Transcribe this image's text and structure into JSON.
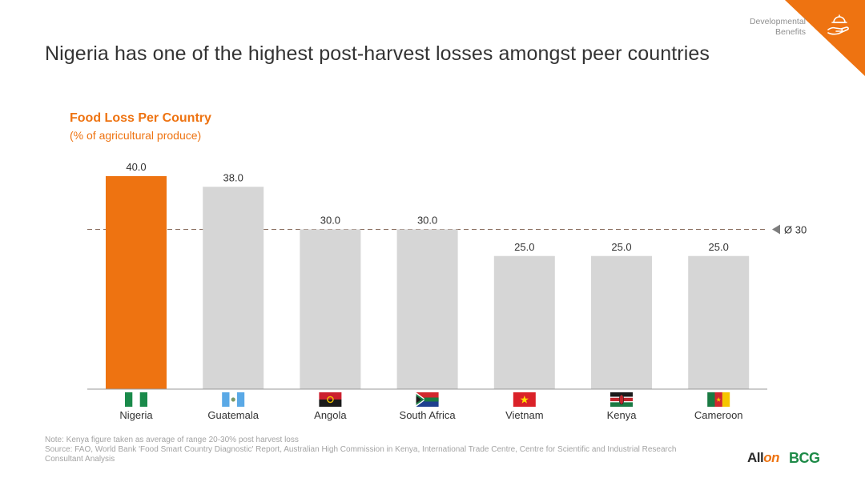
{
  "header": {
    "section_label_line1": "Developmental",
    "section_label_line2": "Benefits",
    "icon": "hand-with-bell-icon",
    "title": "Nigeria has one of the highest post-harvest losses amongst peer countries"
  },
  "colors": {
    "accent": "#ee7311",
    "bar_default": "#d6d6d6",
    "text": "#333333",
    "muted": "#a3a3a3"
  },
  "chart_data": {
    "type": "bar",
    "title": "Food Loss Per Country",
    "subtitle": "(% of agricultural produce)",
    "categories": [
      "Nigeria",
      "Guatemala",
      "Angola",
      "South Africa",
      "Vietnam",
      "Kenya",
      "Cameroon"
    ],
    "values": [
      40.0,
      38.0,
      30.0,
      30.0,
      25.0,
      25.0,
      25.0
    ],
    "value_labels": [
      "40.0",
      "38.0",
      "30.0",
      "30.0",
      "25.0",
      "25.0",
      "25.0"
    ],
    "highlight_index": 0,
    "average": {
      "value": 30,
      "label": "Ø 30"
    },
    "ylim": [
      0,
      40
    ],
    "xlabel": "",
    "ylabel": "",
    "grid": false,
    "legend": "none",
    "flag_icons": [
      "nigeria-flag-icon",
      "guatemala-flag-icon",
      "angola-flag-icon",
      "south-africa-flag-icon",
      "vietnam-flag-icon",
      "kenya-flag-icon",
      "cameroon-flag-icon"
    ]
  },
  "footnotes": {
    "note": "Note: Kenya figure taken as average of range 20-30% post harvest loss",
    "source": "Source: FAO, World Bank 'Food Smart Country Diagnostic' Report, Australian High Commission in Kenya, International Trade Centre, Centre for Scientific and Industrial Research",
    "analysis": "Consultant Analysis"
  },
  "logos": {
    "allon_prefix": "All",
    "allon_suffix": "on",
    "bcg": "BCG"
  }
}
